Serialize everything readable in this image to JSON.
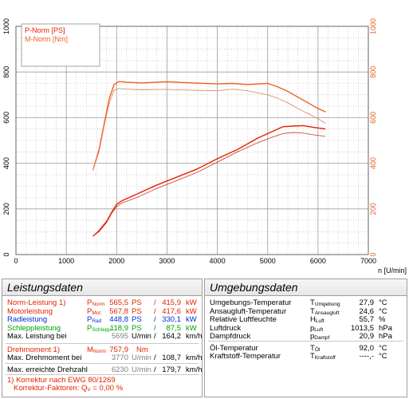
{
  "chart_data": {
    "type": "line",
    "xlabel": "n [U/min]",
    "xlim": [
      0,
      7000
    ],
    "x_ticks": [
      "0",
      "1000",
      "2000",
      "3000",
      "4000",
      "5000",
      "6000",
      "7000"
    ],
    "y_left_lim": [
      0,
      1000
    ],
    "y_left_ticks": [
      "0",
      "200",
      "400",
      "600",
      "800",
      "1000"
    ],
    "y_right_ticks": [
      "0",
      "200",
      "400",
      "600",
      "800",
      "1000"
    ],
    "grid": true,
    "legend_position": "top-left",
    "legend": [
      {
        "label": "P-Norm [PS]",
        "color": "#e82000"
      },
      {
        "label": "M-Norm [Nm]",
        "color": "#f06020"
      }
    ],
    "series": [
      {
        "name": "P-Norm [PS]",
        "color": "#e82000",
        "width": 1.4,
        "x": [
          1530,
          1650,
          1800,
          1900,
          2000,
          2100,
          2400,
          2800,
          3200,
          3600,
          4000,
          4400,
          4800,
          5100,
          5300,
          5500,
          5700,
          5900,
          6150
        ],
        "y": [
          80,
          105,
          145,
          185,
          220,
          235,
          265,
          305,
          340,
          375,
          420,
          460,
          510,
          540,
          560,
          563,
          565,
          558,
          550
        ]
      },
      {
        "name": "",
        "color": "#c8503c",
        "width": 0.9,
        "x": [
          1530,
          1650,
          1800,
          1900,
          2000,
          2100,
          2400,
          2800,
          3200,
          3600,
          4000,
          4400,
          4800,
          5100,
          5300,
          5500,
          5700,
          5900,
          6150
        ],
        "y": [
          80,
          100,
          140,
          180,
          210,
          225,
          250,
          290,
          325,
          360,
          405,
          450,
          490,
          515,
          530,
          535,
          532,
          525,
          518
        ]
      },
      {
        "name": "M-Norm [Nm]",
        "color": "#f06020",
        "width": 1.4,
        "x": [
          1530,
          1650,
          1750,
          1850,
          1950,
          2050,
          2200,
          2500,
          3000,
          3500,
          4000,
          4300,
          4600,
          5000,
          5200,
          5400,
          5600,
          5800,
          6000,
          6150
        ],
        "y": [
          370,
          460,
          570,
          680,
          745,
          758,
          755,
          752,
          757,
          752,
          748,
          750,
          745,
          750,
          735,
          715,
          690,
          665,
          640,
          625
        ]
      },
      {
        "name": "",
        "color": "#e88a70",
        "width": 0.9,
        "x": [
          1530,
          1650,
          1750,
          1850,
          1950,
          2050,
          2200,
          2500,
          3000,
          3500,
          4000,
          4300,
          4600,
          5000,
          5200,
          5400,
          5600,
          5800,
          6000,
          6150
        ],
        "y": [
          370,
          450,
          560,
          660,
          720,
          728,
          725,
          722,
          724,
          720,
          718,
          725,
          718,
          700,
          685,
          665,
          640,
          618,
          595,
          575
        ]
      }
    ]
  },
  "left": {
    "title": "Leistungsdaten",
    "rows": [
      {
        "label": "Norm-Leistung 1)",
        "sym": "P",
        "sub": "Norm",
        "v1": "565,5",
        "u1": "PS",
        "sl": "/",
        "v2": "415,9",
        "u2": "kW"
      },
      {
        "label": "Motorleistung",
        "sym": "P",
        "sub": "Mot",
        "v1": "567,8",
        "u1": "PS",
        "sl": "/",
        "v2": "417,6",
        "u2": "kW"
      },
      {
        "label": "Radleistung",
        "sym": "P",
        "sub": "Rad",
        "v1": "448,8",
        "u1": "PS",
        "sl": "/",
        "v2": "330,1",
        "u2": "kW"
      },
      {
        "label": "Schleppleistung",
        "sym": "P",
        "sub": "Schlepp",
        "v1": "118,9",
        "u1": "PS",
        "sl": "/",
        "v2": "87,5",
        "u2": "kW"
      },
      {
        "label": "Max. Leistung bei",
        "sym": "",
        "sub": "",
        "v1": "5695",
        "u1": "U/min",
        "sl": "/",
        "v2": "164,2",
        "u2": "km/h"
      }
    ],
    "torque": {
      "label": "Drehmoment 1)",
      "sym": "M",
      "sub": "Norm",
      "v1": "757,9",
      "u1": "Nm"
    },
    "max_torque": {
      "label": "Max. Drehmoment bei",
      "v1": "3770",
      "u1": "U/min",
      "sl": "/",
      "v2": "108,7",
      "u2": "km/h"
    },
    "max_rpm": {
      "label": "Max. erreichte Drehzahl",
      "v1": "6230",
      "u1": "U/min",
      "sl": "/",
      "v2": "179,7",
      "u2": "km/h"
    },
    "note1": "1) Korrektur nach EWG 80/1269",
    "note2_prefix": "Korrektur-Faktoren: Q",
    "note2_sub": "V",
    "note2_suffix": " =   0,00 %"
  },
  "right": {
    "title": "Umgebungsdaten",
    "rows": [
      {
        "label": "Umgebungs-Temperatur",
        "sym": "T",
        "sub": "Umgebung",
        "val": "27,9",
        "unit": "°C"
      },
      {
        "label": "Ansaugluft-Temperatur",
        "sym": "T",
        "sub": "Ansaugluft",
        "val": "24,6",
        "unit": "°C"
      },
      {
        "label": "Relative Luftfeuchte",
        "sym": "H",
        "sub": "Luft",
        "val": "55,7",
        "unit": "%"
      },
      {
        "label": "Luftdruck",
        "sym": "p",
        "sub": "Luft",
        "val": "1013,5",
        "unit": "hPa"
      },
      {
        "label": "Dampfdruck",
        "sym": "p",
        "sub": "Dampf",
        "val": "20,9",
        "unit": "hPa"
      },
      {
        "label": "Öl-Temperatur",
        "sym": "T",
        "sub": "Öl",
        "val": "92,0",
        "unit": "°C"
      },
      {
        "label": "Kraftstoff-Temperatur",
        "sym": "T",
        "sub": "Kraftstoff",
        "val": "----,-",
        "unit": "°C"
      }
    ]
  }
}
